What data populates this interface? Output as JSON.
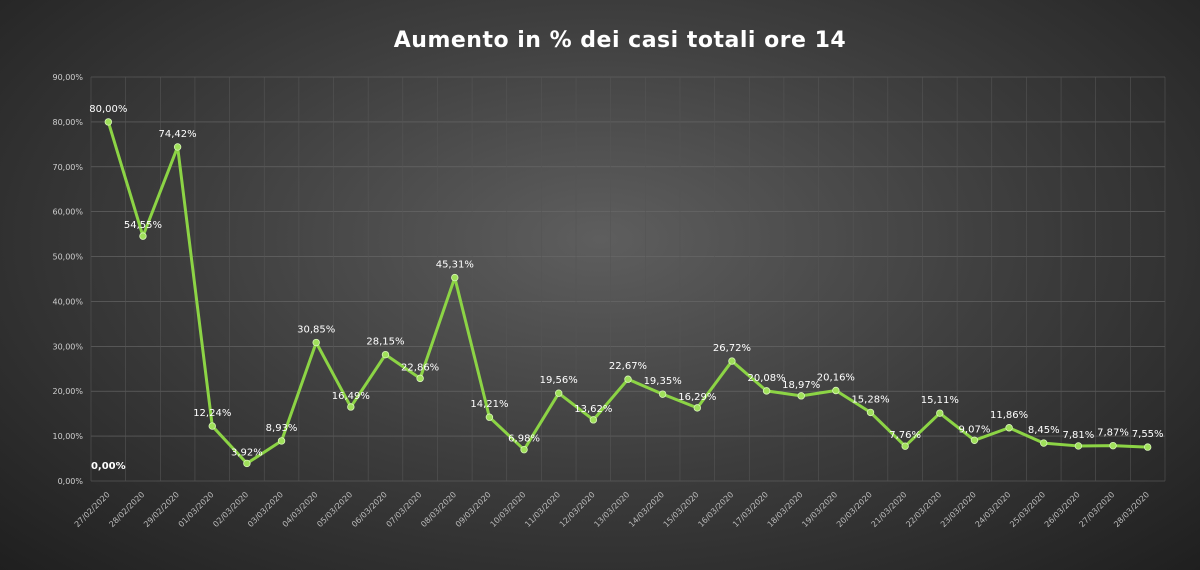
{
  "chart_data": {
    "type": "line",
    "title": "Aumento in % dei casi totali ore 14",
    "xlabel": "",
    "ylabel": "",
    "ylim": [
      0,
      90
    ],
    "y_ticks": [
      "0,00%",
      "10,00%",
      "20,00%",
      "30,00%",
      "40,00%",
      "50,00%",
      "60,00%",
      "70,00%",
      "80,00%",
      "90,00%"
    ],
    "grid": true,
    "legend": "none",
    "line_color": "#8cd445",
    "categories": [
      "27/02/2020",
      "28/02/2020",
      "29/02/2020",
      "01/03/2020",
      "02/03/2020",
      "03/03/2020",
      "04/03/2020",
      "05/03/2020",
      "06/03/2020",
      "07/03/2020",
      "08/03/2020",
      "09/03/2020",
      "10/03/2020",
      "11/03/2020",
      "12/03/2020",
      "13/03/2020",
      "14/03/2020",
      "15/03/2020",
      "16/03/2020",
      "17/03/2020",
      "18/03/2020",
      "19/03/2020",
      "20/03/2020",
      "21/03/2020",
      "22/03/2020",
      "23/03/2020",
      "24/03/2020",
      "25/03/2020",
      "26/03/2020",
      "27/03/2020",
      "28/03/2020"
    ],
    "values": [
      80.0,
      54.55,
      74.42,
      12.24,
      3.92,
      8.93,
      30.85,
      16.49,
      28.15,
      22.86,
      45.31,
      14.21,
      6.98,
      19.56,
      13.62,
      22.67,
      19.35,
      16.29,
      26.72,
      20.08,
      18.97,
      20.16,
      15.28,
      7.76,
      15.11,
      9.07,
      11.86,
      8.45,
      7.81,
      7.87,
      7.55
    ],
    "data_labels": [
      "80,00%",
      "54,55%",
      "74,42%",
      "12,24%",
      "3,92%",
      "8,93%",
      "30,85%",
      "16,49%",
      "28,15%",
      "22,86%",
      "45,31%",
      "14,21%",
      "6,98%",
      "19,56%",
      "13,62%",
      "22,67%",
      "19,35%",
      "16,29%",
      "26,72%",
      "20,08%",
      "18,97%",
      "20,16%",
      "15,28%",
      "7,76%",
      "15,11%",
      "9,07%",
      "11,86%",
      "8,45%",
      "7,81%",
      "7,87%",
      "7,55%"
    ],
    "annotations": [
      "0,00%"
    ]
  }
}
